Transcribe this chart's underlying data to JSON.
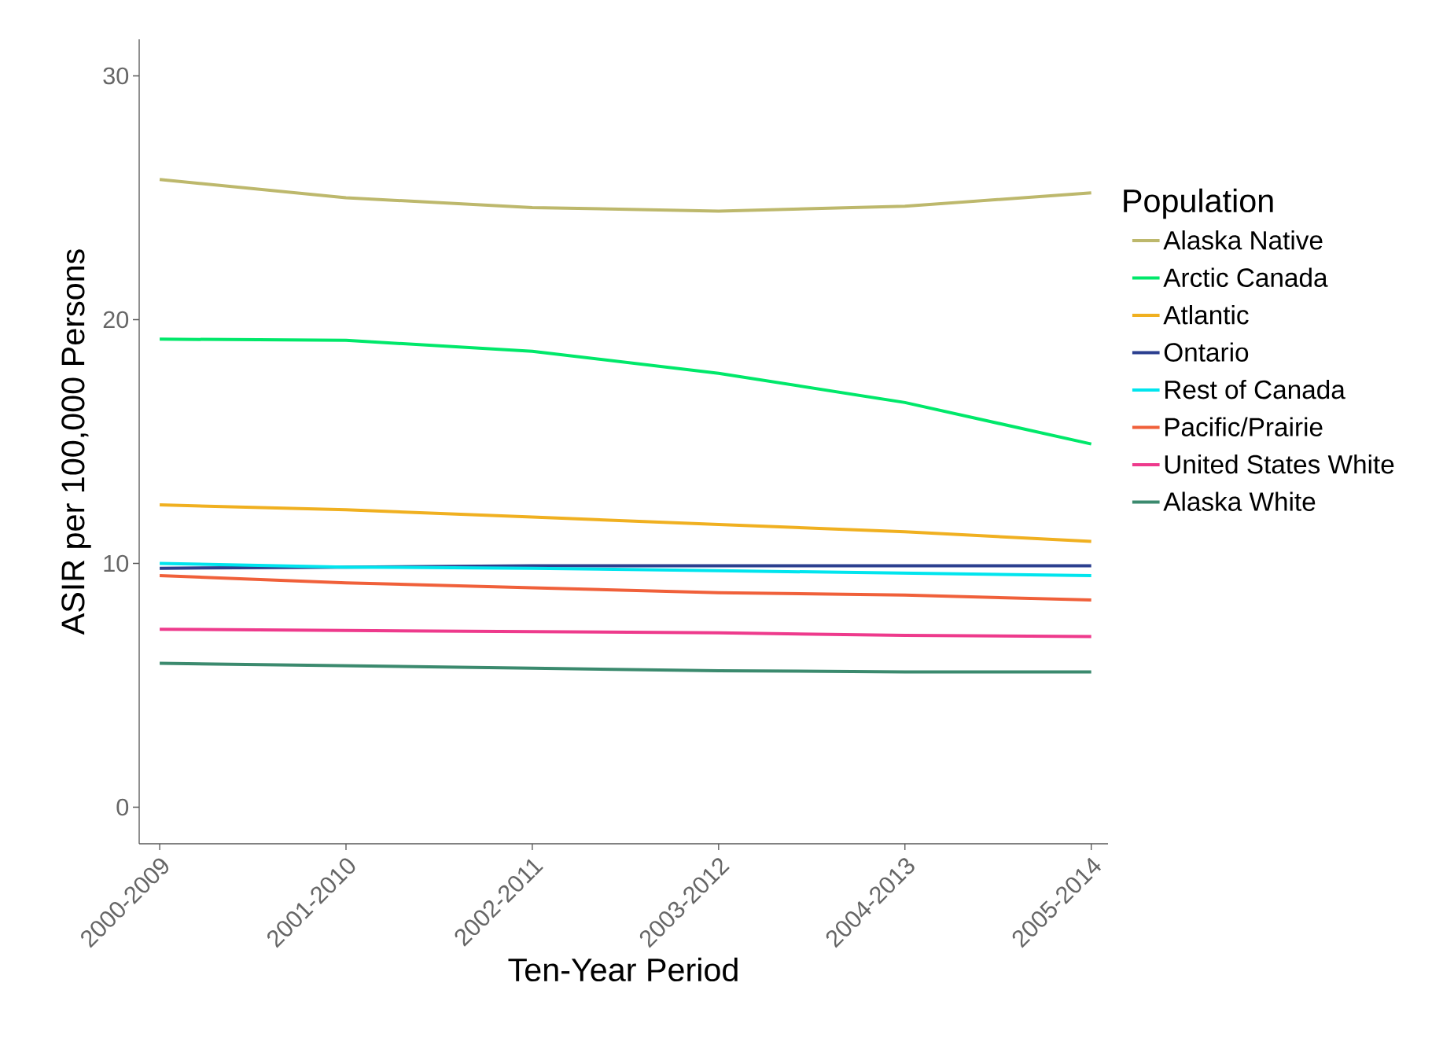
{
  "chart_data": {
    "type": "line",
    "xlabel": "Ten-Year Period",
    "ylabel": "ASIR per 100,000 Persons",
    "legend_title": "Population",
    "legend": "right",
    "grid": false,
    "categories": [
      "2000-2009",
      "2001-2010",
      "2002-2011",
      "2003-2012",
      "2004-2013",
      "2005-2014"
    ],
    "ylim": [
      -1.5,
      31.5
    ],
    "yticks": [
      0,
      10,
      20,
      30
    ],
    "series": [
      {
        "name": "Alaska Native",
        "color": "#bdb86c",
        "values": [
          25.75,
          25.0,
          24.6,
          24.45,
          24.65,
          25.2
        ]
      },
      {
        "name": "Arctic Canada",
        "color": "#00e86a",
        "values": [
          19.2,
          19.15,
          18.7,
          17.8,
          16.6,
          14.9
        ]
      },
      {
        "name": "Atlantic",
        "color": "#f0b020",
        "values": [
          12.4,
          12.2,
          11.9,
          11.6,
          11.3,
          10.9
        ]
      },
      {
        "name": "Ontario",
        "color": "#2b3f8f",
        "values": [
          9.8,
          9.85,
          9.9,
          9.9,
          9.9,
          9.9
        ]
      },
      {
        "name": "Rest of Canada",
        "color": "#00e5ee",
        "values": [
          10.0,
          9.85,
          9.8,
          9.7,
          9.6,
          9.5
        ]
      },
      {
        "name": "Pacific/Prairie",
        "color": "#f0603a",
        "values": [
          9.5,
          9.2,
          9.0,
          8.8,
          8.7,
          8.5
        ]
      },
      {
        "name": "United States White",
        "color": "#ee3a8c",
        "values": [
          7.3,
          7.25,
          7.2,
          7.15,
          7.05,
          7.0
        ]
      },
      {
        "name": "Alaska White",
        "color": "#3b8a6e",
        "values": [
          5.9,
          5.8,
          5.7,
          5.6,
          5.55,
          5.55
        ]
      }
    ]
  }
}
